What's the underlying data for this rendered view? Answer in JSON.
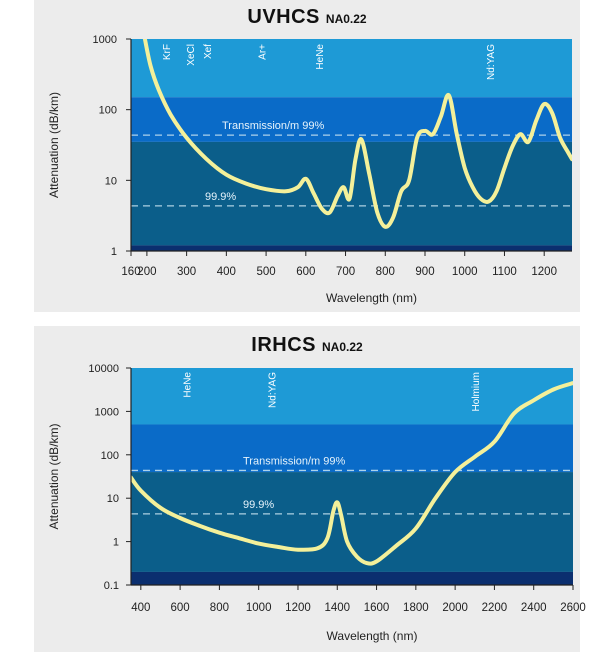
{
  "chart_data": [
    {
      "type": "line",
      "title": "UVHCS",
      "subtitle": "NA0.22",
      "xlabel": "Wavelength (nm)",
      "ylabel": "Attenuation (dB/km)",
      "y_scale": "log",
      "xlim": [
        160,
        1270
      ],
      "ylim": [
        1,
        1000
      ],
      "x_ticks": [
        160,
        200,
        300,
        400,
        500,
        600,
        700,
        800,
        900,
        1000,
        1100,
        1200
      ],
      "y_ticks": [
        1,
        10,
        100,
        1000
      ],
      "y_tick_labels": [
        "1",
        "10",
        "100",
        "1000"
      ],
      "bands": [
        {
          "from": 150,
          "to": 1000,
          "color": "#1e9ad6"
        },
        {
          "from": 35,
          "to": 150,
          "color": "#0a6bc8"
        },
        {
          "from": 1.2,
          "to": 35,
          "color": "#0b5e8a"
        },
        {
          "from": 1,
          "to": 1.2,
          "color": "#0b2f6f"
        }
      ],
      "reference_lines": [
        {
          "label": "Transmission/m 99%",
          "y": 43.6
        },
        {
          "label": "99.9%",
          "y": 4.35
        }
      ],
      "laser_labels": [
        {
          "label": "KrF",
          "x": 248
        },
        {
          "label": "XeCl",
          "x": 308
        },
        {
          "label": "Xef",
          "x": 351
        },
        {
          "label": "Ar+",
          "x": 488
        },
        {
          "label": "HeNe",
          "x": 633
        },
        {
          "label": "Nd:YAG",
          "x": 1064
        }
      ],
      "series": [
        {
          "color": "#f4f09a",
          "x": [
            195,
            210,
            230,
            260,
            300,
            350,
            400,
            450,
            500,
            550,
            580,
            600,
            620,
            640,
            660,
            680,
            695,
            710,
            725,
            740,
            760,
            780,
            800,
            820,
            840,
            860,
            880,
            900,
            920,
            940,
            960,
            980,
            1000,
            1020,
            1040,
            1060,
            1080,
            1100,
            1120,
            1140,
            1160,
            1180,
            1200,
            1220,
            1240,
            1260,
            1270
          ],
          "y": [
            1000,
            400,
            190,
            85,
            40,
            20,
            12,
            9,
            7.5,
            7.0,
            8.0,
            10.5,
            6.5,
            4.0,
            3.5,
            6.0,
            8.0,
            5.5,
            20,
            38,
            12,
            3.5,
            2.2,
            3.0,
            7.0,
            10,
            40,
            50,
            45,
            80,
            160,
            45,
            15,
            8,
            5.5,
            5.0,
            7,
            15,
            30,
            45,
            35,
            70,
            120,
            90,
            40,
            25,
            20
          ]
        }
      ]
    },
    {
      "type": "line",
      "title": "IRHCS",
      "subtitle": "NA0.22",
      "xlabel": "Wavelength (nm)",
      "ylabel": "Attenuation (dB/km)",
      "y_scale": "log",
      "xlim": [
        350,
        2600
      ],
      "ylim": [
        0.1,
        10000
      ],
      "x_ticks": [
        400,
        600,
        800,
        1000,
        1200,
        1400,
        1600,
        1800,
        2000,
        2200,
        2400,
        2600
      ],
      "y_ticks": [
        0.1,
        1,
        10,
        100,
        1000,
        10000
      ],
      "y_tick_labels": [
        "0.1",
        "1",
        "10",
        "100",
        "1000",
        "10000"
      ],
      "bands": [
        {
          "from": 500,
          "to": 10000,
          "color": "#1e9ad6"
        },
        {
          "from": 40,
          "to": 500,
          "color": "#0a6bc8"
        },
        {
          "from": 0.2,
          "to": 40,
          "color": "#0b5e8a"
        },
        {
          "from": 0.1,
          "to": 0.2,
          "color": "#0b2f6f"
        }
      ],
      "reference_lines": [
        {
          "label": "Transmission/m 99%",
          "y": 43.6
        },
        {
          "label": "99.9%",
          "y": 4.35
        }
      ],
      "laser_labels": [
        {
          "label": "HeNe",
          "x": 633
        },
        {
          "label": "Nd:YAG",
          "x": 1064
        },
        {
          "label": "Holmium",
          "x": 2100
        }
      ],
      "series": [
        {
          "color": "#f4f09a",
          "x": [
            350,
            400,
            500,
            600,
            700,
            800,
            900,
            1000,
            1100,
            1200,
            1300,
            1350,
            1380,
            1400,
            1420,
            1450,
            1500,
            1550,
            1600,
            1700,
            1800,
            1900,
            2000,
            2100,
            2200,
            2300,
            2400,
            2500,
            2600
          ],
          "y": [
            30,
            15,
            6,
            3.5,
            2.3,
            1.6,
            1.2,
            0.9,
            0.75,
            0.65,
            0.7,
            1.2,
            5,
            8,
            4,
            1.0,
            0.45,
            0.32,
            0.35,
            0.8,
            2,
            10,
            40,
            90,
            200,
            900,
            1800,
            3200,
            4500
          ]
        }
      ]
    }
  ]
}
